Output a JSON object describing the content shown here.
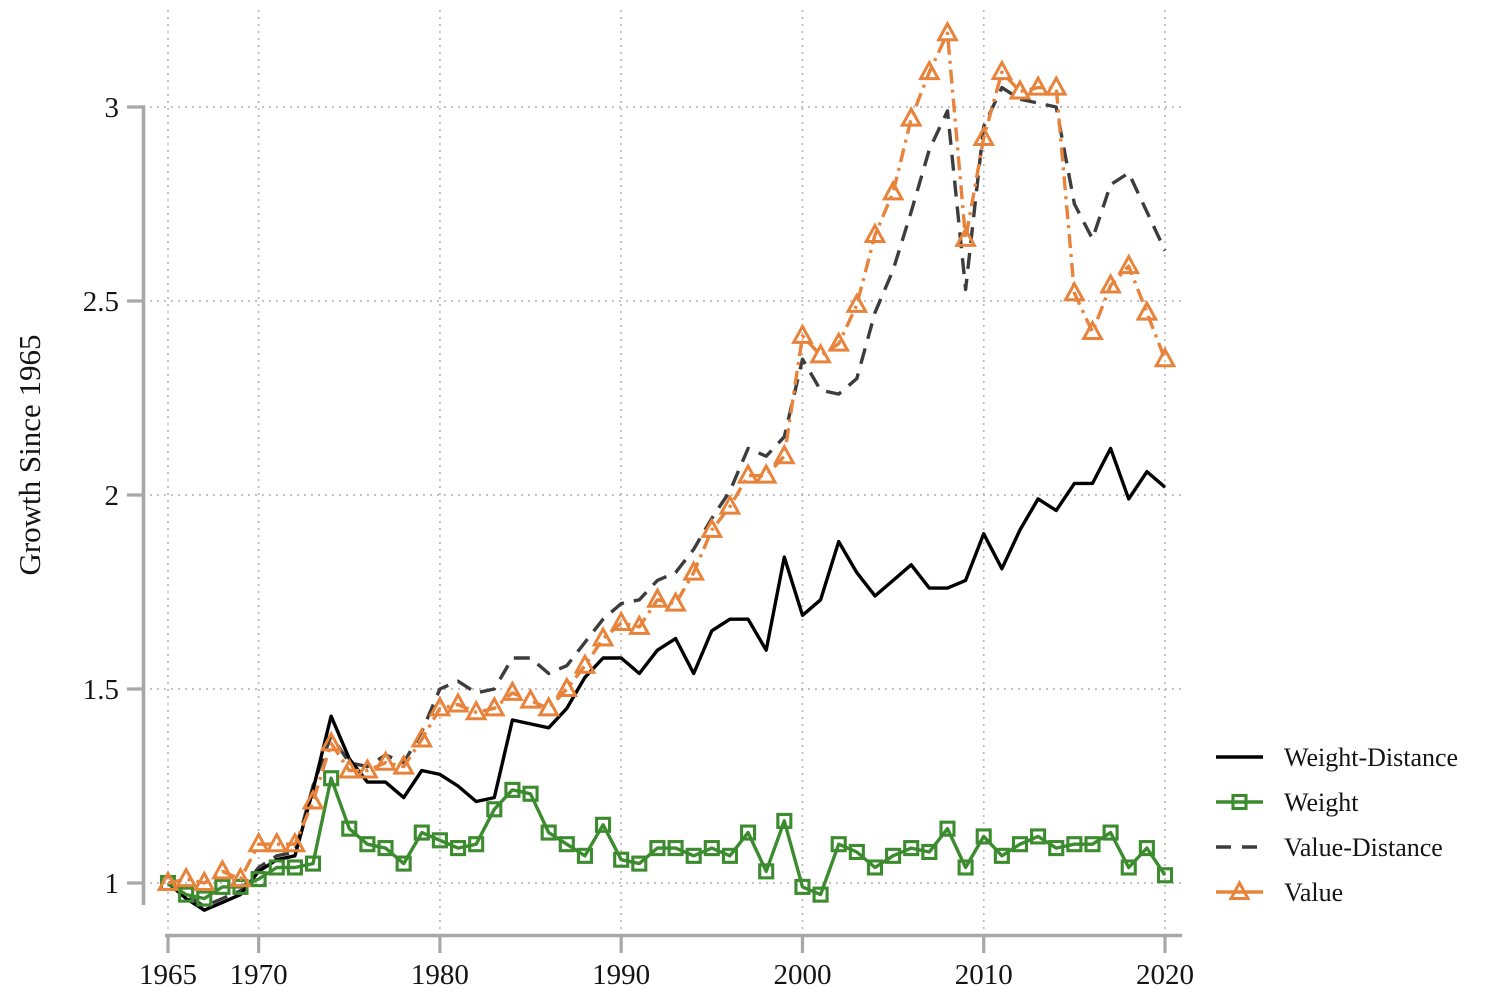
{
  "page": {
    "background": "#ffffff"
  },
  "chart_data": {
    "type": "line",
    "title": "",
    "xlabel": "",
    "ylabel": "Growth Since 1965",
    "x": [
      1965,
      1966,
      1967,
      1968,
      1969,
      1970,
      1971,
      1972,
      1973,
      1974,
      1975,
      1976,
      1977,
      1978,
      1979,
      1980,
      1981,
      1982,
      1983,
      1984,
      1985,
      1986,
      1987,
      1988,
      1989,
      1990,
      1991,
      1992,
      1993,
      1994,
      1995,
      1996,
      1997,
      1998,
      1999,
      2000,
      2001,
      2002,
      2003,
      2004,
      2005,
      2006,
      2007,
      2008,
      2009,
      2010,
      2011,
      2012,
      2013,
      2014,
      2015,
      2016,
      2017,
      2018,
      2019,
      2020
    ],
    "xticks": [
      1965,
      1970,
      1980,
      1990,
      2000,
      2010,
      2020
    ],
    "xtick_labels": [
      "1965",
      "1970",
      "1980",
      "1990",
      "2000",
      "2010",
      "2020"
    ],
    "yticks": [
      1,
      1.5,
      2,
      2.5,
      3
    ],
    "ytick_labels": [
      "1",
      "1.5",
      "2",
      "2.5",
      "3"
    ],
    "xlim": [
      1965,
      2020
    ],
    "ylim": [
      0.88,
      3.22
    ],
    "grid": {
      "show": true,
      "style": "dotted",
      "color": "#b9b9b9"
    },
    "axis_color": "#a8a8a8",
    "legend_position": "outside-bottom-right",
    "series": [
      {
        "name": "Weight-Distance",
        "color": "#000000",
        "style": "solid",
        "marker": "none",
        "values": [
          1.0,
          0.96,
          0.93,
          0.95,
          0.97,
          1.03,
          1.06,
          1.07,
          1.24,
          1.43,
          1.32,
          1.26,
          1.26,
          1.22,
          1.29,
          1.28,
          1.25,
          1.21,
          1.22,
          1.42,
          1.41,
          1.4,
          1.45,
          1.53,
          1.58,
          1.58,
          1.54,
          1.6,
          1.63,
          1.54,
          1.65,
          1.68,
          1.68,
          1.6,
          1.84,
          1.69,
          1.73,
          1.88,
          1.8,
          1.74,
          1.78,
          1.82,
          1.76,
          1.76,
          1.78,
          1.9,
          1.81,
          1.91,
          1.99,
          1.96,
          2.03,
          2.03,
          2.12,
          1.99,
          2.06,
          2.02
        ]
      },
      {
        "name": "Weight",
        "color": "#3c8b2f",
        "style": "solid",
        "marker": "square",
        "values": [
          1.0,
          0.97,
          0.96,
          0.99,
          0.99,
          1.01,
          1.04,
          1.04,
          1.05,
          1.27,
          1.14,
          1.1,
          1.09,
          1.05,
          1.13,
          1.11,
          1.09,
          1.1,
          1.19,
          1.24,
          1.23,
          1.13,
          1.1,
          1.07,
          1.15,
          1.06,
          1.05,
          1.09,
          1.09,
          1.07,
          1.09,
          1.07,
          1.13,
          1.03,
          1.16,
          0.99,
          0.97,
          1.1,
          1.08,
          1.04,
          1.07,
          1.09,
          1.08,
          1.14,
          1.04,
          1.12,
          1.07,
          1.1,
          1.12,
          1.09,
          1.1,
          1.1,
          1.13,
          1.04,
          1.09,
          1.02
        ]
      },
      {
        "name": "Value-Distance",
        "color": "#3d3d3d",
        "style": "dashed",
        "marker": "none",
        "values": [
          1.0,
          0.97,
          0.94,
          0.96,
          0.98,
          1.04,
          1.07,
          1.08,
          1.25,
          1.38,
          1.31,
          1.3,
          1.33,
          1.31,
          1.39,
          1.5,
          1.52,
          1.49,
          1.5,
          1.58,
          1.58,
          1.54,
          1.56,
          1.62,
          1.68,
          1.72,
          1.73,
          1.78,
          1.8,
          1.86,
          1.94,
          2.01,
          2.12,
          2.1,
          2.15,
          2.35,
          2.27,
          2.26,
          2.3,
          2.47,
          2.58,
          2.73,
          2.89,
          2.99,
          2.53,
          2.95,
          3.05,
          3.02,
          3.01,
          3.0,
          2.75,
          2.66,
          2.8,
          2.83,
          2.73,
          2.63
        ]
      },
      {
        "name": "Value",
        "color": "#e8833b",
        "style": "dashdot",
        "marker": "triangle",
        "values": [
          1.0,
          1.01,
          1.0,
          1.03,
          1.01,
          1.1,
          1.1,
          1.1,
          1.21,
          1.36,
          1.29,
          1.29,
          1.31,
          1.3,
          1.37,
          1.45,
          1.46,
          1.44,
          1.45,
          1.49,
          1.47,
          1.45,
          1.5,
          1.56,
          1.63,
          1.67,
          1.66,
          1.73,
          1.72,
          1.8,
          1.91,
          1.97,
          2.05,
          2.05,
          2.1,
          2.41,
          2.36,
          2.39,
          2.49,
          2.67,
          2.78,
          2.97,
          3.09,
          3.19,
          2.66,
          2.92,
          3.09,
          3.04,
          3.05,
          3.05,
          2.52,
          2.42,
          2.54,
          2.59,
          2.47,
          2.35
        ]
      }
    ]
  }
}
